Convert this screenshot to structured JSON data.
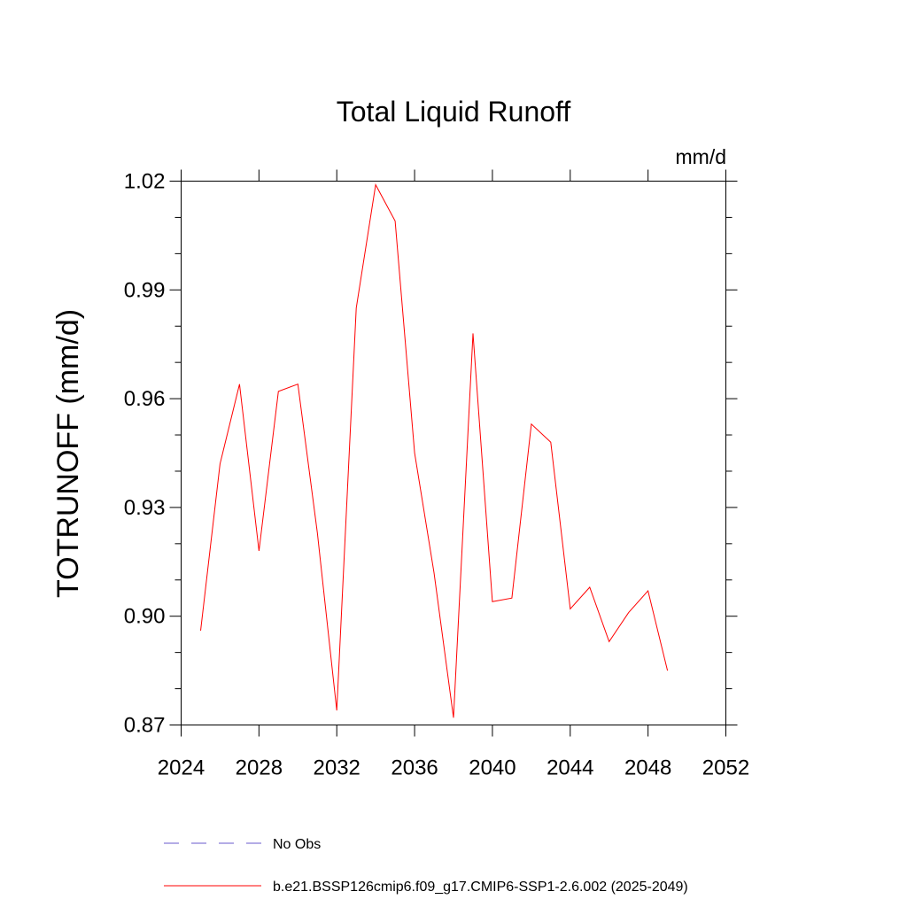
{
  "chart_data": {
    "type": "line",
    "title": "Total Liquid Runoff",
    "units": "mm/d",
    "ylabel": "TOTRUNOFF  (mm/d)",
    "xlabel": "",
    "xlim": [
      2024,
      2052
    ],
    "ylim": [
      0.87,
      1.02
    ],
    "x_ticks": [
      2024,
      2028,
      2032,
      2036,
      2040,
      2044,
      2048,
      2052
    ],
    "x_tick_labels": [
      "2024",
      "2028",
      "2032",
      "2036",
      "2040",
      "2044",
      "2048",
      "2052"
    ],
    "y_ticks": [
      0.87,
      0.9,
      0.93,
      0.96,
      0.99,
      1.02
    ],
    "y_tick_labels": [
      "0.87",
      "0.90",
      "0.93",
      "0.96",
      "0.99",
      "1.02"
    ],
    "grid": false,
    "legend_placement": "bottom",
    "series": [
      {
        "name": "No Obs",
        "color": "#6a5acd",
        "style": "dashed",
        "x": [],
        "y": []
      },
      {
        "name": "b.e21.BSSP126cmip6.f09_g17.CMIP6-SSP1-2.6.002 (2025-2049)",
        "color": "#ff0000",
        "style": "solid",
        "x": [
          2025,
          2026,
          2027,
          2028,
          2029,
          2030,
          2031,
          2032,
          2033,
          2034,
          2035,
          2036,
          2037,
          2038,
          2039,
          2040,
          2041,
          2042,
          2043,
          2044,
          2045,
          2046,
          2047,
          2048,
          2049
        ],
        "y": [
          0.896,
          0.942,
          0.964,
          0.918,
          0.962,
          0.964,
          0.923,
          0.874,
          0.985,
          1.019,
          1.009,
          0.945,
          0.912,
          0.872,
          0.978,
          0.904,
          0.905,
          0.953,
          0.948,
          0.902,
          0.908,
          0.893,
          0.901,
          0.907,
          0.885
        ]
      }
    ]
  }
}
